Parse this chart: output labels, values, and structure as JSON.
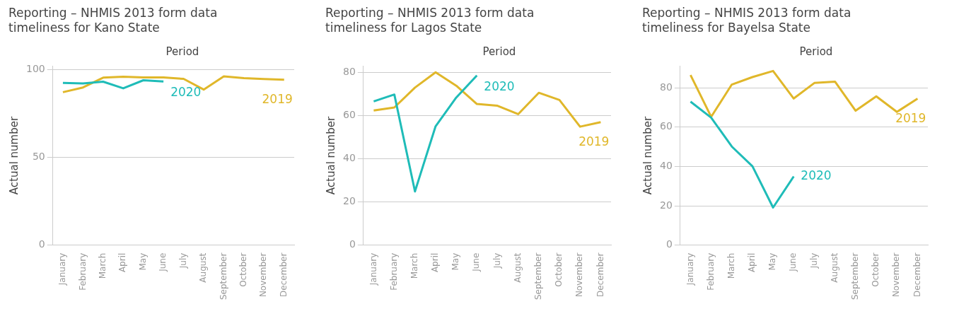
{
  "chart_data": [
    {
      "type": "line",
      "title": "Reporting – NHMIS 2013 form data timeliness for Kano State",
      "xlabel": "Period",
      "ylabel": "Actual number",
      "categories": [
        "January",
        "February",
        "March",
        "April",
        "May",
        "June",
        "July",
        "August",
        "September",
        "October",
        "November",
        "December"
      ],
      "series": [
        {
          "name": "2020",
          "color": "#1fbcb8",
          "values": [
            92.4,
            92.1,
            93.1,
            89.3,
            93.9,
            93.2,
            null,
            null,
            null,
            null,
            null,
            null
          ]
        },
        {
          "name": "2019",
          "color": "#e0b72a",
          "values": [
            87.1,
            89.8,
            95.4,
            95.9,
            95.5,
            95.5,
            94.7,
            88.6,
            96.1,
            95.1,
            94.6,
            94.2
          ]
        }
      ],
      "ylim": [
        0,
        102
      ],
      "yticks": [
        0,
        50,
        100
      ],
      "grid": "y",
      "legend": false,
      "marker": "none",
      "line_style": "solid"
    },
    {
      "type": "line",
      "title": "Reporting – NHMIS 2013 form data timeliness for Lagos State",
      "xlabel": "Period",
      "ylabel": "Actual number",
      "categories": [
        "January",
        "February",
        "March",
        "April",
        "May",
        "June",
        "July",
        "August",
        "September",
        "October",
        "November",
        "December"
      ],
      "series": [
        {
          "name": "2020",
          "color": "#1fbcb8",
          "values": [
            66.6,
            69.8,
            24.9,
            55.1,
            68.4,
            78.6,
            null,
            null,
            null,
            null,
            null,
            null
          ]
        },
        {
          "name": "2019",
          "color": "#e0b72a",
          "values": [
            62.4,
            63.8,
            73,
            80.1,
            73.9,
            65.4,
            64.6,
            60.7,
            70.6,
            67.3,
            54.9,
            57
          ]
        }
      ],
      "ylim": [
        0,
        83
      ],
      "yticks": [
        0,
        20,
        40,
        60,
        80
      ],
      "grid": "y",
      "legend": false,
      "marker": "none",
      "line_style": "solid"
    },
    {
      "type": "line",
      "title": "Reporting – NHMIS 2013 form data timeliness for Bayelsa State",
      "xlabel": "Period",
      "ylabel": "Actual number",
      "categories": [
        "January",
        "February",
        "March",
        "April",
        "May",
        "June",
        "July",
        "August",
        "September",
        "October",
        "November",
        "December"
      ],
      "series": [
        {
          "name": "2020",
          "color": "#1fbcb8",
          "values": [
            72.9,
            64.8,
            50.1,
            40.1,
            19.1,
            34.9,
            null,
            null,
            null,
            null,
            null,
            null
          ]
        },
        {
          "name": "2019",
          "color": "#e0b72a",
          "values": [
            86.4,
            65.2,
            81.6,
            85.4,
            88.5,
            74.5,
            82.4,
            83.1,
            68.3,
            75.6,
            67.7,
            74.4
          ]
        }
      ],
      "ylim": [
        0,
        91
      ],
      "yticks": [
        0,
        20,
        40,
        60,
        80
      ],
      "grid": "y",
      "legend": false,
      "marker": "none",
      "line_style": "solid"
    }
  ]
}
